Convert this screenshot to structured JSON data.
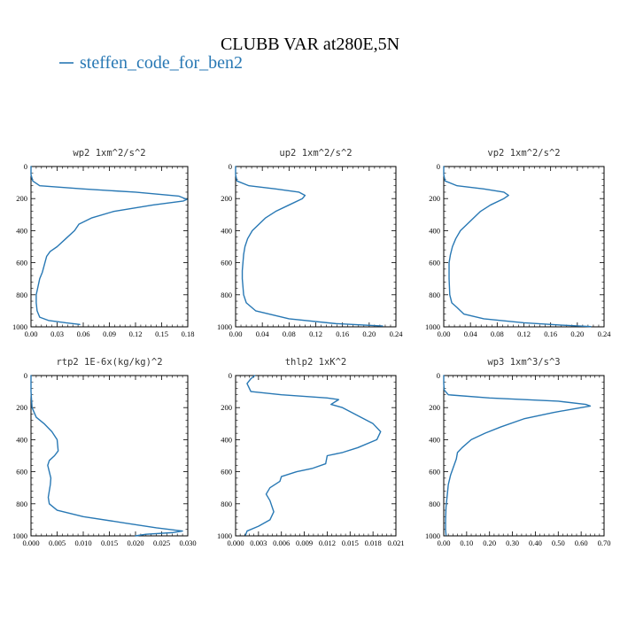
{
  "figure": {
    "title": "CLUBB VAR at280E,5N",
    "legend_label": "steffen_code_for_ben2",
    "line_color": "#2878b4"
  },
  "chart_data": [
    {
      "type": "line",
      "title": "wp2  1xm^2/s^2",
      "xlim": [
        0,
        0.18
      ],
      "xticks": [
        "0.00",
        "0.03",
        "0.06",
        "0.09",
        "0.12",
        "0.15",
        "0.18"
      ],
      "ylim": [
        0,
        1000
      ],
      "yticks": [
        "0",
        "200",
        "400",
        "600",
        "800",
        "1000"
      ],
      "series": [
        {
          "x": [
            0.0,
            0.0,
            0.002,
            0.01,
            0.06,
            0.12,
            0.17,
            0.179,
            0.175,
            0.14,
            0.095,
            0.07,
            0.055,
            0.05,
            0.04,
            0.03,
            0.022,
            0.018,
            0.016,
            0.015,
            0.013,
            0.01,
            0.008,
            0.006,
            0.006,
            0.007,
            0.01,
            0.02,
            0.04,
            0.056
          ],
          "y": [
            0,
            50,
            90,
            120,
            140,
            160,
            185,
            205,
            215,
            240,
            280,
            320,
            360,
            400,
            450,
            500,
            530,
            560,
            600,
            620,
            660,
            700,
            750,
            800,
            850,
            900,
            940,
            960,
            975,
            985
          ]
        }
      ]
    },
    {
      "type": "line",
      "title": "up2  1xm^2/s^2",
      "xlim": [
        0,
        0.24
      ],
      "xticks": [
        "0.00",
        "0.04",
        "0.08",
        "0.12",
        "0.16",
        "0.20",
        "0.24"
      ],
      "ylim": [
        0,
        1000
      ],
      "yticks": [
        "0",
        "200",
        "400",
        "600",
        "800",
        "1000"
      ],
      "series": [
        {
          "x": [
            0.0,
            0.0,
            0.002,
            0.02,
            0.06,
            0.095,
            0.104,
            0.1,
            0.08,
            0.06,
            0.045,
            0.035,
            0.025,
            0.018,
            0.014,
            0.012,
            0.011,
            0.01,
            0.01,
            0.011,
            0.012,
            0.016,
            0.03,
            0.08,
            0.15,
            0.22
          ],
          "y": [
            0,
            50,
            90,
            120,
            140,
            160,
            180,
            200,
            240,
            280,
            320,
            360,
            400,
            450,
            500,
            550,
            600,
            650,
            700,
            750,
            800,
            850,
            900,
            950,
            980,
            995
          ]
        }
      ]
    },
    {
      "type": "line",
      "title": "vp2  1xm^2/s^2",
      "xlim": [
        0,
        0.24
      ],
      "xticks": [
        "0.00",
        "0.04",
        "0.08",
        "0.12",
        "0.16",
        "0.20",
        "0.24"
      ],
      "ylim": [
        0,
        1000
      ],
      "yticks": [
        "0",
        "200",
        "400",
        "600",
        "800",
        "1000"
      ],
      "series": [
        {
          "x": [
            0.0,
            0.0,
            0.002,
            0.02,
            0.06,
            0.09,
            0.097,
            0.09,
            0.07,
            0.055,
            0.045,
            0.035,
            0.025,
            0.018,
            0.013,
            0.01,
            0.008,
            0.008,
            0.009,
            0.012,
            0.02,
            0.03,
            0.06,
            0.12,
            0.18,
            0.22
          ],
          "y": [
            0,
            50,
            90,
            120,
            140,
            160,
            180,
            200,
            240,
            280,
            320,
            360,
            400,
            450,
            500,
            550,
            600,
            700,
            800,
            850,
            880,
            920,
            950,
            975,
            990,
            998
          ]
        }
      ]
    },
    {
      "type": "line",
      "title": "rtp2  1E-6x(kg/kg)^2",
      "xlim": [
        0,
        0.03
      ],
      "xticks": [
        "0.000",
        "0.005",
        "0.010",
        "0.015",
        "0.020",
        "0.025",
        "0.030"
      ],
      "ylim": [
        0,
        1000
      ],
      "yticks": [
        "0",
        "200",
        "400",
        "600",
        "800",
        "1000"
      ],
      "series": [
        {
          "x": [
            0.0,
            0.0,
            0.0002,
            0.001,
            0.0025,
            0.004,
            0.005,
            0.0052,
            0.0045,
            0.0035,
            0.0032,
            0.0035,
            0.0038,
            0.0037,
            0.0035,
            0.0033,
            0.0035,
            0.005,
            0.01,
            0.018,
            0.024,
            0.029,
            0.027,
            0.022,
            0.02
          ],
          "y": [
            0,
            100,
            200,
            260,
            300,
            350,
            400,
            470,
            500,
            530,
            560,
            600,
            640,
            680,
            720,
            760,
            800,
            840,
            880,
            920,
            950,
            970,
            980,
            990,
            1000
          ]
        }
      ]
    },
    {
      "type": "line",
      "title": "thlp2  1xK^2",
      "xlim": [
        0,
        0.021
      ],
      "xticks": [
        "0.000",
        "0.003",
        "0.006",
        "0.009",
        "0.012",
        "0.015",
        "0.018",
        "0.021"
      ],
      "ylim": [
        0,
        1000
      ],
      "yticks": [
        "0",
        "200",
        "400",
        "600",
        "800",
        "1000"
      ],
      "series": [
        {
          "x": [
            0.0025,
            0.002,
            0.0015,
            0.002,
            0.006,
            0.012,
            0.0135,
            0.0125,
            0.014,
            0.016,
            0.018,
            0.019,
            0.0185,
            0.016,
            0.014,
            0.012,
            0.0118,
            0.01,
            0.008,
            0.006,
            0.0058,
            0.0045,
            0.004,
            0.0045,
            0.005,
            0.0045,
            0.003,
            0.0015,
            0.0013
          ],
          "y": [
            0,
            20,
            50,
            100,
            120,
            140,
            150,
            180,
            200,
            250,
            300,
            350,
            400,
            450,
            480,
            500,
            550,
            580,
            600,
            630,
            660,
            700,
            740,
            780,
            850,
            900,
            940,
            970,
            995
          ]
        }
      ]
    },
    {
      "type": "line",
      "title": "wp3  1xm^3/s^3",
      "xlim": [
        0,
        0.7
      ],
      "xticks": [
        "0.00",
        "0.10",
        "0.20",
        "0.30",
        "0.40",
        "0.50",
        "0.60",
        "0.70"
      ],
      "ylim": [
        0,
        1000
      ],
      "yticks": [
        "0",
        "200",
        "400",
        "600",
        "800",
        "1000"
      ],
      "series": [
        {
          "x": [
            0.0,
            0.0,
            0.002,
            0.02,
            0.2,
            0.5,
            0.62,
            0.64,
            0.6,
            0.48,
            0.35,
            0.25,
            0.18,
            0.12,
            0.08,
            0.06,
            0.055,
            0.04,
            0.03,
            0.02,
            0.015,
            0.01,
            0.008,
            0.008,
            0.01
          ],
          "y": [
            0,
            50,
            90,
            120,
            140,
            160,
            180,
            190,
            200,
            230,
            270,
            320,
            360,
            400,
            450,
            480,
            520,
            580,
            620,
            680,
            750,
            820,
            900,
            960,
            995
          ]
        }
      ]
    }
  ]
}
